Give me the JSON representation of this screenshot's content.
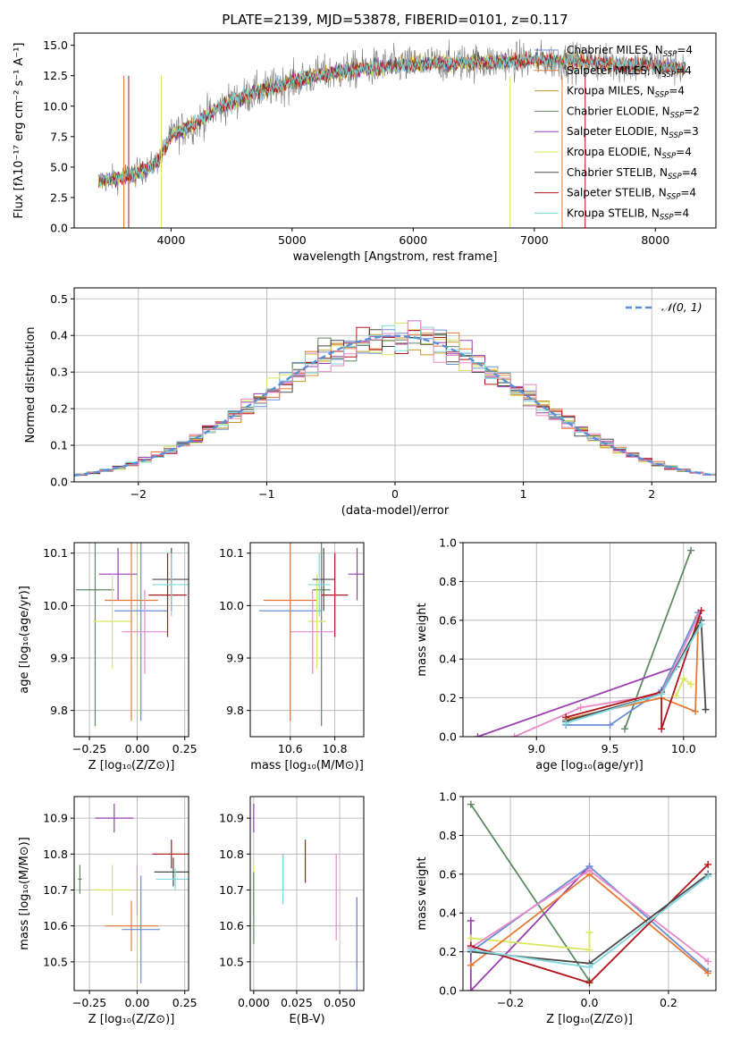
{
  "title": "PLATE=2139, MJD=53878, FIBERID=0101, z=0.117",
  "colors": {
    "chabrier_miles": "#6a8fd6",
    "salpeter_miles": "#e57a35",
    "kroupa_miles": "#c8972b",
    "chabrier_elodie": "#5f8a62",
    "salpeter_elodie": "#9b3fb0",
    "kroupa_elodie": "#d8e85a",
    "chabrier_stelib": "#4a4a4a",
    "salpeter_stelib": "#b3151b",
    "kroupa_stelib": "#7fd9de",
    "pink": "#e88ac6",
    "normal": "#5b8fd6"
  },
  "chart_data": [
    {
      "id": "spectrum",
      "type": "line",
      "title": "PLATE=2139, MJD=53878, FIBERID=0101, z=0.117",
      "xlabel": "wavelength [Angstrom, rest frame]",
      "ylabel": "Flux [fλ10⁻¹⁷ erg cm⁻² s⁻¹ A⁻¹]",
      "xlim": [
        3200,
        8500
      ],
      "ylim": [
        0,
        16
      ],
      "xticks": [
        "4000",
        "5000",
        "6000",
        "7000",
        "8000"
      ],
      "yticks": [
        "0.0",
        "2.5",
        "5.0",
        "7.5",
        "10.0",
        "12.5",
        "15.0"
      ],
      "legend": [
        "Chabrier MILES, N_SSP=4",
        "Salpeter MILES, N_SSP=4",
        "Kroupa MILES, N_SSP=4",
        "Chabrier ELODIE, N_SSP=2",
        "Salpeter ELODIE, N_SSP=3",
        "Kroupa ELODIE, N_SSP=4",
        "Chabrier STELIB, N_SSP=4",
        "Salpeter STELIB, N_SSP=4",
        "Kroupa STELIB, N_SSP=4"
      ],
      "legend_position": "right",
      "continuum": {
        "x": [
          3400,
          3600,
          3800,
          3900,
          4000,
          4200,
          4400,
          4600,
          4800,
          5000,
          5200,
          5400,
          5600,
          5800,
          6000,
          6200,
          6400,
          6600,
          6800,
          7000,
          7200,
          7400,
          7600,
          7800,
          8000,
          8250
        ],
        "y": [
          3.8,
          4.2,
          4.8,
          5.6,
          7.6,
          8.6,
          9.9,
          10.8,
          11.4,
          12.0,
          12.5,
          12.8,
          13.1,
          13.3,
          13.4,
          13.5,
          13.6,
          13.6,
          13.7,
          13.8,
          13.7,
          13.6,
          13.5,
          13.4,
          13.3,
          13.2
        ]
      }
    },
    {
      "id": "residuals",
      "type": "step-histogram",
      "xlabel": "(data-model)/error",
      "ylabel": "Normed distribution",
      "xlim": [
        -2.5,
        2.5
      ],
      "ylim": [
        0,
        0.53
      ],
      "xticks": [
        "−2",
        "−1",
        "0",
        "1",
        "2"
      ],
      "yticks": [
        "0.0",
        "0.1",
        "0.2",
        "0.3",
        "0.4",
        "0.5"
      ],
      "normal_label": "𝒩(0, 1)",
      "bin_width": 0.1
    },
    {
      "id": "age-vs-Z",
      "type": "errorbar",
      "xlabel": "Z [log₁₀(Z/Z⊙)]",
      "ylabel": "age  [log₁₀(age/yr)]",
      "xlim": [
        -0.33,
        0.27
      ],
      "ylim": [
        9.75,
        10.12
      ],
      "xticks": [
        "−0.25",
        "0.00",
        "0.25"
      ],
      "yticks": [
        "9.8",
        "9.9",
        "10.0",
        "10.1"
      ],
      "points": [
        {
          "x": -0.22,
          "y": 10.03,
          "xerr": 0.1,
          "yerr": 0.26,
          "c": "chabrier_elodie"
        },
        {
          "x": -0.1,
          "y": 10.06,
          "xerr": 0.1,
          "yerr": 0.05,
          "c": "salpeter_elodie"
        },
        {
          "x": -0.13,
          "y": 9.97,
          "xerr": 0.1,
          "yerr": 0.09,
          "c": "kroupa_elodie"
        },
        {
          "x": -0.03,
          "y": 10.01,
          "xerr": 0.14,
          "yerr": 0.23,
          "c": "salpeter_miles"
        },
        {
          "x": 0.02,
          "y": 9.99,
          "xerr": 0.14,
          "yerr": 0.21,
          "c": "chabrier_miles"
        },
        {
          "x": 0.04,
          "y": 9.95,
          "xerr": 0.12,
          "yerr": 0.08,
          "c": "pink"
        },
        {
          "x": 0.16,
          "y": 10.02,
          "xerr": 0.1,
          "yerr": 0.08,
          "c": "salpeter_stelib"
        },
        {
          "x": 0.18,
          "y": 10.05,
          "xerr": 0.1,
          "yerr": 0.06,
          "c": "chabrier_stelib"
        },
        {
          "x": 0.18,
          "y": 10.04,
          "xerr": 0.1,
          "yerr": 0.06,
          "c": "kroupa_stelib"
        }
      ]
    },
    {
      "id": "age-vs-mass",
      "type": "errorbar",
      "xlabel": "mass [log₁₀(M/M⊙)]",
      "xlim": [
        10.42,
        10.93
      ],
      "ylim": [
        9.75,
        10.12
      ],
      "xticks": [
        "10.6",
        "10.8"
      ],
      "yticks": [
        "9.8",
        "9.9",
        "10.0",
        "10.1"
      ],
      "points": [
        {
          "x": 10.6,
          "y": 9.99,
          "xerr": 0.14,
          "yerr": 0.21,
          "c": "chabrier_miles"
        },
        {
          "x": 10.6,
          "y": 10.01,
          "xerr": 0.12,
          "yerr": 0.23,
          "c": "salpeter_miles"
        },
        {
          "x": 10.74,
          "y": 10.03,
          "xerr": 0.04,
          "yerr": 0.26,
          "c": "chabrier_elodie"
        },
        {
          "x": 10.72,
          "y": 9.97,
          "xerr": 0.04,
          "yerr": 0.09,
          "c": "kroupa_elodie"
        },
        {
          "x": 10.9,
          "y": 10.06,
          "xerr": 0.04,
          "yerr": 0.05,
          "c": "salpeter_elodie"
        },
        {
          "x": 10.75,
          "y": 10.05,
          "xerr": 0.05,
          "yerr": 0.06,
          "c": "chabrier_stelib"
        },
        {
          "x": 10.8,
          "y": 10.02,
          "xerr": 0.06,
          "yerr": 0.08,
          "c": "salpeter_stelib"
        },
        {
          "x": 10.73,
          "y": 10.04,
          "xerr": 0.05,
          "yerr": 0.06,
          "c": "kroupa_stelib"
        },
        {
          "x": 10.7,
          "y": 9.95,
          "xerr": 0.1,
          "yerr": 0.08,
          "c": "pink"
        }
      ]
    },
    {
      "id": "massweight-vs-age",
      "type": "line",
      "xlabel": "age  [log₁₀(age/yr)]",
      "ylabel": "mass weight",
      "xlim": [
        8.5,
        10.22
      ],
      "ylim": [
        0,
        1
      ],
      "xticks": [
        "9.0",
        "9.5",
        "10.0"
      ],
      "yticks": [
        "0.0",
        "0.2",
        "0.4",
        "0.6",
        "0.8",
        "1.0"
      ],
      "series": [
        {
          "c": "chabrier_elodie",
          "x": [
            9.6,
            10.05
          ],
          "y": [
            0.04,
            0.96
          ]
        },
        {
          "c": "salpeter_elodie",
          "x": [
            8.6,
            9.95
          ],
          "y": [
            0.0,
            0.36
          ]
        },
        {
          "c": "chabrier_miles",
          "x": [
            9.2,
            9.5,
            9.85,
            10.1
          ],
          "y": [
            0.06,
            0.06,
            0.24,
            0.64
          ]
        },
        {
          "c": "salpeter_miles",
          "x": [
            9.2,
            9.85,
            10.08,
            10.1
          ],
          "y": [
            0.09,
            0.2,
            0.13,
            0.61
          ]
        },
        {
          "c": "pink",
          "x": [
            8.85,
            9.3,
            9.85,
            10.1
          ],
          "y": [
            0.0,
            0.15,
            0.22,
            0.62
          ]
        },
        {
          "c": "salpeter_stelib",
          "x": [
            9.2,
            9.85,
            9.85,
            10.12
          ],
          "y": [
            0.1,
            0.23,
            0.04,
            0.65
          ]
        },
        {
          "c": "chabrier_stelib",
          "x": [
            9.2,
            9.85,
            10.12,
            10.15
          ],
          "y": [
            0.08,
            0.22,
            0.6,
            0.14
          ]
        },
        {
          "c": "kroupa_stelib",
          "x": [
            9.2,
            9.85,
            10.12
          ],
          "y": [
            0.07,
            0.22,
            0.58
          ]
        },
        {
          "c": "kroupa_elodie",
          "x": [
            9.95,
            10.0,
            10.05
          ],
          "y": [
            0.21,
            0.3,
            0.27
          ]
        }
      ]
    },
    {
      "id": "mass-vs-Z",
      "type": "errorbar",
      "xlabel": "Z [log₁₀(Z/Z⊙)]",
      "ylabel": "mass [log₁₀(M/M⊙)]",
      "xlim": [
        -0.33,
        0.27
      ],
      "ylim": [
        10.42,
        10.96
      ],
      "xticks": [
        "−0.25",
        "0.00",
        "0.25"
      ],
      "yticks": [
        "10.5",
        "10.6",
        "10.7",
        "10.8",
        "10.9"
      ],
      "points": [
        {
          "x": -0.12,
          "y": 10.9,
          "xerr": 0.1,
          "yerr": 0.04,
          "c": "salpeter_elodie"
        },
        {
          "x": -0.13,
          "y": 10.7,
          "xerr": 0.1,
          "yerr": 0.07,
          "c": "kroupa_elodie"
        },
        {
          "x": -0.3,
          "y": 10.73,
          "xerr": 0.01,
          "yerr": 0.04,
          "c": "chabrier_elodie"
        },
        {
          "x": -0.03,
          "y": 10.6,
          "xerr": 0.14,
          "yerr": 0.07,
          "c": "salpeter_miles"
        },
        {
          "x": 0.02,
          "y": 10.59,
          "xerr": 0.1,
          "yerr": 0.15,
          "c": "chabrier_miles"
        },
        {
          "x": 0.0,
          "y": 10.7,
          "xerr": 0.0,
          "yerr": 0.07,
          "c": "pink"
        },
        {
          "x": 0.18,
          "y": 10.8,
          "xerr": 0.1,
          "yerr": 0.04,
          "c": "salpeter_stelib"
        },
        {
          "x": 0.19,
          "y": 10.75,
          "xerr": 0.1,
          "yerr": 0.04,
          "c": "chabrier_stelib"
        },
        {
          "x": 0.2,
          "y": 10.73,
          "xerr": 0.1,
          "yerr": 0.03,
          "c": "kroupa_stelib"
        }
      ]
    },
    {
      "id": "mass-vs-ebv",
      "type": "errorbar",
      "xlabel": "E(B-V)",
      "xlim": [
        -0.002,
        0.064
      ],
      "ylim": [
        10.42,
        10.96
      ],
      "xticks": [
        "0.000",
        "0.025",
        "0.050"
      ],
      "yticks": [
        "10.5",
        "10.6",
        "10.7",
        "10.8",
        "10.9"
      ],
      "points": [
        {
          "x": 0.0,
          "y": 10.9,
          "xerr": 0,
          "yerr": 0.04,
          "c": "salpeter_elodie"
        },
        {
          "x": 0.0,
          "y": 10.7,
          "xerr": 0,
          "yerr": 0.07,
          "c": "kroupa_elodie"
        },
        {
          "x": 0.0,
          "y": 10.65,
          "xerr": 0,
          "yerr": 0.1,
          "c": "chabrier_elodie"
        },
        {
          "x": 0.017,
          "y": 10.75,
          "xerr": 0,
          "yerr": 0.05,
          "c": "chabrier_stelib"
        },
        {
          "x": 0.017,
          "y": 10.73,
          "xerr": 0,
          "yerr": 0.07,
          "c": "kroupa_stelib"
        },
        {
          "x": 0.03,
          "y": 10.78,
          "xerr": 0,
          "yerr": 0.06,
          "c": "salpeter_stelib"
        },
        {
          "x": 0.048,
          "y": 10.68,
          "xerr": 0,
          "yerr": 0.12,
          "c": "pink"
        },
        {
          "x": 0.06,
          "y": 10.58,
          "xerr": 0,
          "yerr": 0.1,
          "c": "salpeter_miles"
        },
        {
          "x": 0.06,
          "y": 10.55,
          "xerr": 0,
          "yerr": 0.13,
          "c": "chabrier_miles"
        }
      ]
    },
    {
      "id": "massweight-vs-Z",
      "type": "line",
      "xlabel": "Z [log₁₀(Z/Z⊙)]",
      "ylabel": "mass weight",
      "xlim": [
        -0.32,
        0.32
      ],
      "ylim": [
        0,
        1
      ],
      "xticks": [
        "−0.2",
        "0.0",
        "0.2"
      ],
      "yticks": [
        "0.0",
        "0.2",
        "0.4",
        "0.6",
        "0.8",
        "1.0"
      ],
      "series": [
        {
          "c": "chabrier_elodie",
          "x": [
            -0.3,
            0.0
          ],
          "y": [
            0.96,
            0.05
          ]
        },
        {
          "c": "salpeter_elodie",
          "x": [
            -0.3,
            -0.3,
            0.0
          ],
          "y": [
            0.36,
            0.0,
            0.64
          ]
        },
        {
          "c": "kroupa_elodie",
          "x": [
            -0.3,
            0.0,
            0.0
          ],
          "y": [
            0.27,
            0.21,
            0.3
          ]
        },
        {
          "c": "chabrier_miles",
          "x": [
            -0.3,
            0.0,
            0.3
          ],
          "y": [
            0.2,
            0.64,
            0.1
          ]
        },
        {
          "c": "salpeter_miles",
          "x": [
            -0.3,
            0.0,
            0.3
          ],
          "y": [
            0.13,
            0.6,
            0.09
          ]
        },
        {
          "c": "pink",
          "x": [
            -0.3,
            0.0,
            0.3
          ],
          "y": [
            0.22,
            0.62,
            0.15
          ]
        },
        {
          "c": "salpeter_stelib",
          "x": [
            -0.3,
            0.0,
            0.3
          ],
          "y": [
            0.23,
            0.04,
            0.65
          ]
        },
        {
          "c": "chabrier_stelib",
          "x": [
            -0.3,
            0.0,
            0.3
          ],
          "y": [
            0.2,
            0.14,
            0.6
          ]
        },
        {
          "c": "kroupa_stelib",
          "x": [
            -0.3,
            0.0,
            0.3
          ],
          "y": [
            0.21,
            0.12,
            0.59
          ]
        }
      ]
    }
  ]
}
